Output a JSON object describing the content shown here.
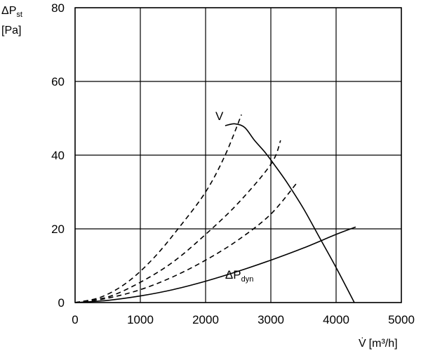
{
  "chart_data": {
    "type": "line",
    "xlabel_main": "V̇",
    "xlabel_unit": "[m³/h]",
    "ylabel_main": "ΔP",
    "ylabel_sub": "st",
    "ylabel_unit": "[Pa]",
    "xlim": [
      0,
      5000
    ],
    "ylim": [
      0,
      80
    ],
    "x_ticks": [
      0,
      1000,
      2000,
      3000,
      4000,
      5000
    ],
    "y_ticks": [
      0,
      20,
      40,
      60,
      80
    ],
    "x_tick_labels": [
      "0",
      "1000",
      "2000",
      "3000",
      "4000",
      "5000"
    ],
    "y_tick_labels": [
      "0",
      "20",
      "40",
      "60",
      "80"
    ],
    "grid": true,
    "series": [
      {
        "name": "V",
        "style": "solid",
        "points": [
          [
            2300,
            48
          ],
          [
            2450,
            48.5
          ],
          [
            2600,
            47.5
          ],
          [
            2750,
            44
          ],
          [
            2900,
            41
          ],
          [
            3050,
            37.5
          ],
          [
            3250,
            32.5
          ],
          [
            3500,
            25.5
          ],
          [
            3750,
            17.5
          ],
          [
            4000,
            9.5
          ],
          [
            4280,
            0
          ]
        ]
      },
      {
        "name": "ΔPdyn",
        "style": "solid",
        "points": [
          [
            0,
            0
          ],
          [
            500,
            0.6
          ],
          [
            1000,
            1.8
          ],
          [
            1500,
            3.5
          ],
          [
            2000,
            5.8
          ],
          [
            2500,
            8.5
          ],
          [
            3000,
            11.5
          ],
          [
            3500,
            14.8
          ],
          [
            4000,
            18.5
          ],
          [
            4300,
            20.5
          ]
        ]
      },
      {
        "name": "",
        "style": "dashed",
        "points": [
          [
            0,
            0
          ],
          [
            400,
            1.5
          ],
          [
            800,
            5.5
          ],
          [
            1200,
            12
          ],
          [
            1600,
            20.5
          ],
          [
            2000,
            30
          ],
          [
            2300,
            40
          ],
          [
            2550,
            51
          ]
        ]
      },
      {
        "name": "",
        "style": "dashed",
        "points": [
          [
            0,
            0
          ],
          [
            500,
            1.5
          ],
          [
            1000,
            5.5
          ],
          [
            1500,
            11
          ],
          [
            2000,
            18.5
          ],
          [
            2500,
            27
          ],
          [
            3000,
            37.5
          ],
          [
            3150,
            44
          ]
        ]
      },
      {
        "name": "",
        "style": "dashed",
        "points": [
          [
            0,
            0
          ],
          [
            500,
            1.2
          ],
          [
            1000,
            3.5
          ],
          [
            1500,
            7
          ],
          [
            2000,
            11.5
          ],
          [
            2500,
            17
          ],
          [
            3000,
            24
          ],
          [
            3400,
            32.5
          ]
        ]
      }
    ],
    "annotations": [
      {
        "text": "V",
        "x": 2150,
        "y": 49.5
      },
      {
        "text": "ΔP",
        "sub": "dyn",
        "x": 2300,
        "y": 6.5
      }
    ]
  }
}
